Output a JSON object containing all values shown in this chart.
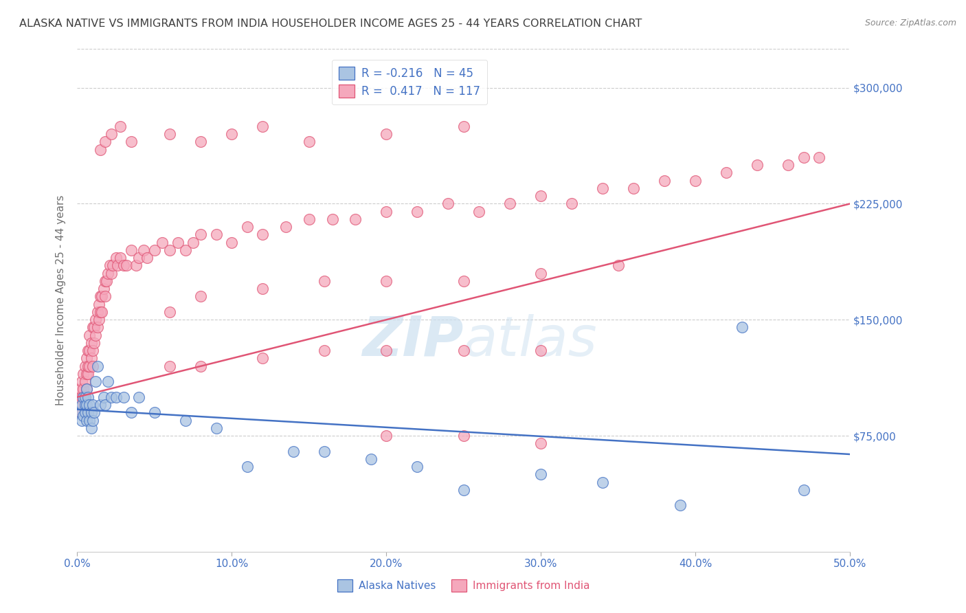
{
  "title": "ALASKA NATIVE VS IMMIGRANTS FROM INDIA HOUSEHOLDER INCOME AGES 25 - 44 YEARS CORRELATION CHART",
  "source": "Source: ZipAtlas.com",
  "ylabel": "Householder Income Ages 25 - 44 years",
  "xmin": 0.0,
  "xmax": 0.5,
  "ymin": 0,
  "ymax": 325000,
  "yticks": [
    0,
    75000,
    150000,
    225000,
    300000
  ],
  "ytick_labels": [
    "",
    "$75,000",
    "$150,000",
    "$225,000",
    "$300,000"
  ],
  "r_blue": -0.216,
  "n_blue": 45,
  "r_pink": 0.417,
  "n_pink": 117,
  "color_blue": "#aac4e2",
  "color_pink": "#f5a8bc",
  "line_blue": "#4472c4",
  "line_pink": "#e05575",
  "title_color": "#404040",
  "axis_label_color": "#4472c4",
  "source_color": "#888888",
  "watermark_color": "#cce0f0",
  "background_color": "#ffffff",
  "grid_color": "#cccccc",
  "blue_x": [
    0.002,
    0.003,
    0.003,
    0.004,
    0.004,
    0.005,
    0.005,
    0.005,
    0.006,
    0.006,
    0.006,
    0.007,
    0.007,
    0.008,
    0.008,
    0.009,
    0.009,
    0.01,
    0.01,
    0.011,
    0.012,
    0.013,
    0.015,
    0.017,
    0.018,
    0.02,
    0.022,
    0.025,
    0.03,
    0.035,
    0.04,
    0.05,
    0.07,
    0.09,
    0.11,
    0.14,
    0.16,
    0.19,
    0.22,
    0.25,
    0.3,
    0.34,
    0.39,
    0.43,
    0.47
  ],
  "blue_y": [
    90000,
    85000,
    95000,
    88000,
    100000,
    95000,
    90000,
    100000,
    85000,
    95000,
    105000,
    90000,
    100000,
    95000,
    85000,
    90000,
    80000,
    85000,
    95000,
    90000,
    110000,
    120000,
    95000,
    100000,
    95000,
    110000,
    100000,
    100000,
    100000,
    90000,
    100000,
    90000,
    85000,
    80000,
    55000,
    65000,
    65000,
    60000,
    55000,
    40000,
    50000,
    45000,
    30000,
    145000,
    40000
  ],
  "pink_x": [
    0.001,
    0.002,
    0.002,
    0.003,
    0.003,
    0.003,
    0.004,
    0.004,
    0.004,
    0.005,
    0.005,
    0.005,
    0.006,
    0.006,
    0.006,
    0.007,
    0.007,
    0.007,
    0.008,
    0.008,
    0.008,
    0.009,
    0.009,
    0.01,
    0.01,
    0.01,
    0.011,
    0.011,
    0.012,
    0.012,
    0.013,
    0.013,
    0.014,
    0.014,
    0.015,
    0.015,
    0.016,
    0.016,
    0.017,
    0.018,
    0.018,
    0.019,
    0.02,
    0.021,
    0.022,
    0.023,
    0.025,
    0.026,
    0.028,
    0.03,
    0.032,
    0.035,
    0.038,
    0.04,
    0.043,
    0.045,
    0.05,
    0.055,
    0.06,
    0.065,
    0.07,
    0.075,
    0.08,
    0.09,
    0.1,
    0.11,
    0.12,
    0.135,
    0.15,
    0.165,
    0.18,
    0.2,
    0.22,
    0.24,
    0.26,
    0.28,
    0.3,
    0.32,
    0.34,
    0.36,
    0.38,
    0.4,
    0.42,
    0.44,
    0.46,
    0.47,
    0.48,
    0.015,
    0.018,
    0.022,
    0.028,
    0.035,
    0.06,
    0.08,
    0.1,
    0.12,
    0.15,
    0.2,
    0.25,
    0.06,
    0.08,
    0.12,
    0.16,
    0.2,
    0.25,
    0.3,
    0.06,
    0.08,
    0.12,
    0.16,
    0.2,
    0.25,
    0.3,
    0.35,
    0.2,
    0.25,
    0.3
  ],
  "pink_y": [
    100000,
    105000,
    90000,
    110000,
    90000,
    100000,
    115000,
    95000,
    105000,
    120000,
    100000,
    110000,
    125000,
    105000,
    115000,
    130000,
    115000,
    120000,
    130000,
    140000,
    120000,
    135000,
    125000,
    145000,
    130000,
    120000,
    145000,
    135000,
    150000,
    140000,
    155000,
    145000,
    160000,
    150000,
    165000,
    155000,
    165000,
    155000,
    170000,
    175000,
    165000,
    175000,
    180000,
    185000,
    180000,
    185000,
    190000,
    185000,
    190000,
    185000,
    185000,
    195000,
    185000,
    190000,
    195000,
    190000,
    195000,
    200000,
    195000,
    200000,
    195000,
    200000,
    205000,
    205000,
    200000,
    210000,
    205000,
    210000,
    215000,
    215000,
    215000,
    220000,
    220000,
    225000,
    220000,
    225000,
    230000,
    225000,
    235000,
    235000,
    240000,
    240000,
    245000,
    250000,
    250000,
    255000,
    255000,
    260000,
    265000,
    270000,
    275000,
    265000,
    270000,
    265000,
    270000,
    275000,
    265000,
    270000,
    275000,
    120000,
    120000,
    125000,
    130000,
    130000,
    130000,
    130000,
    155000,
    165000,
    170000,
    175000,
    175000,
    175000,
    180000,
    185000,
    75000,
    75000,
    70000
  ]
}
